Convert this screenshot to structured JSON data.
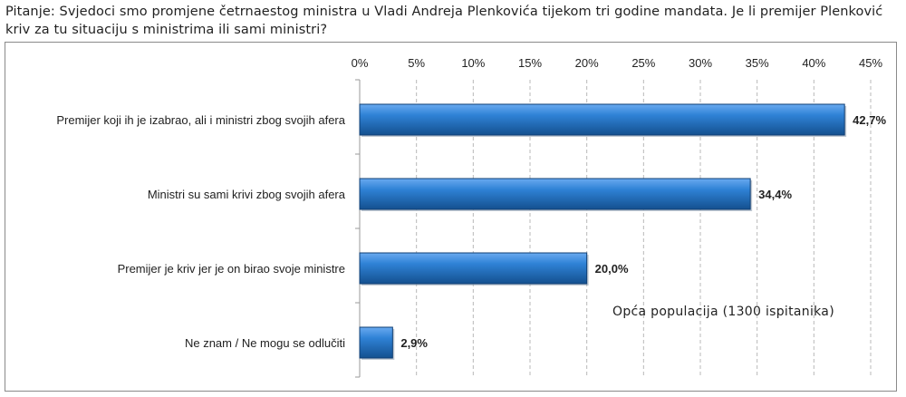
{
  "question": "Pitanje: Svjedoci smo promjene četrnaestog ministra u Vladi Andreja Plenkovića tijekom tri godine mandata. Je li premijer Plenković kriv za tu situaciju s ministrima ili sami ministri?",
  "note": "Opća populacija (1300 ispitanika)",
  "colors": {
    "bar": "#1f6fc4",
    "bar_light": "#5aa0e6",
    "bar_dark": "#14508f",
    "grid": "#b8b8b8"
  },
  "chart_data": {
    "type": "bar",
    "orientation": "horizontal",
    "categories": [
      "Premijer koji ih je izabrao, ali i ministri zbog svojih afera",
      "Ministri su sami krivi zbog svojih afera",
      "Premijer je kriv jer je on birao svoje ministre",
      "Ne znam / Ne mogu se odlučiti"
    ],
    "values": [
      42.7,
      34.4,
      20.0,
      2.9
    ],
    "value_labels": [
      "42,7%",
      "34,4%",
      "20,0%",
      "2,9%"
    ],
    "xlim": [
      0,
      45
    ],
    "ticks": [
      0,
      5,
      10,
      15,
      20,
      25,
      30,
      35,
      40,
      45
    ],
    "tick_labels": [
      "0%",
      "5%",
      "10%",
      "15%",
      "20%",
      "25%",
      "30%",
      "35%",
      "40%",
      "45%"
    ],
    "grid": true,
    "axis_position": "top"
  }
}
